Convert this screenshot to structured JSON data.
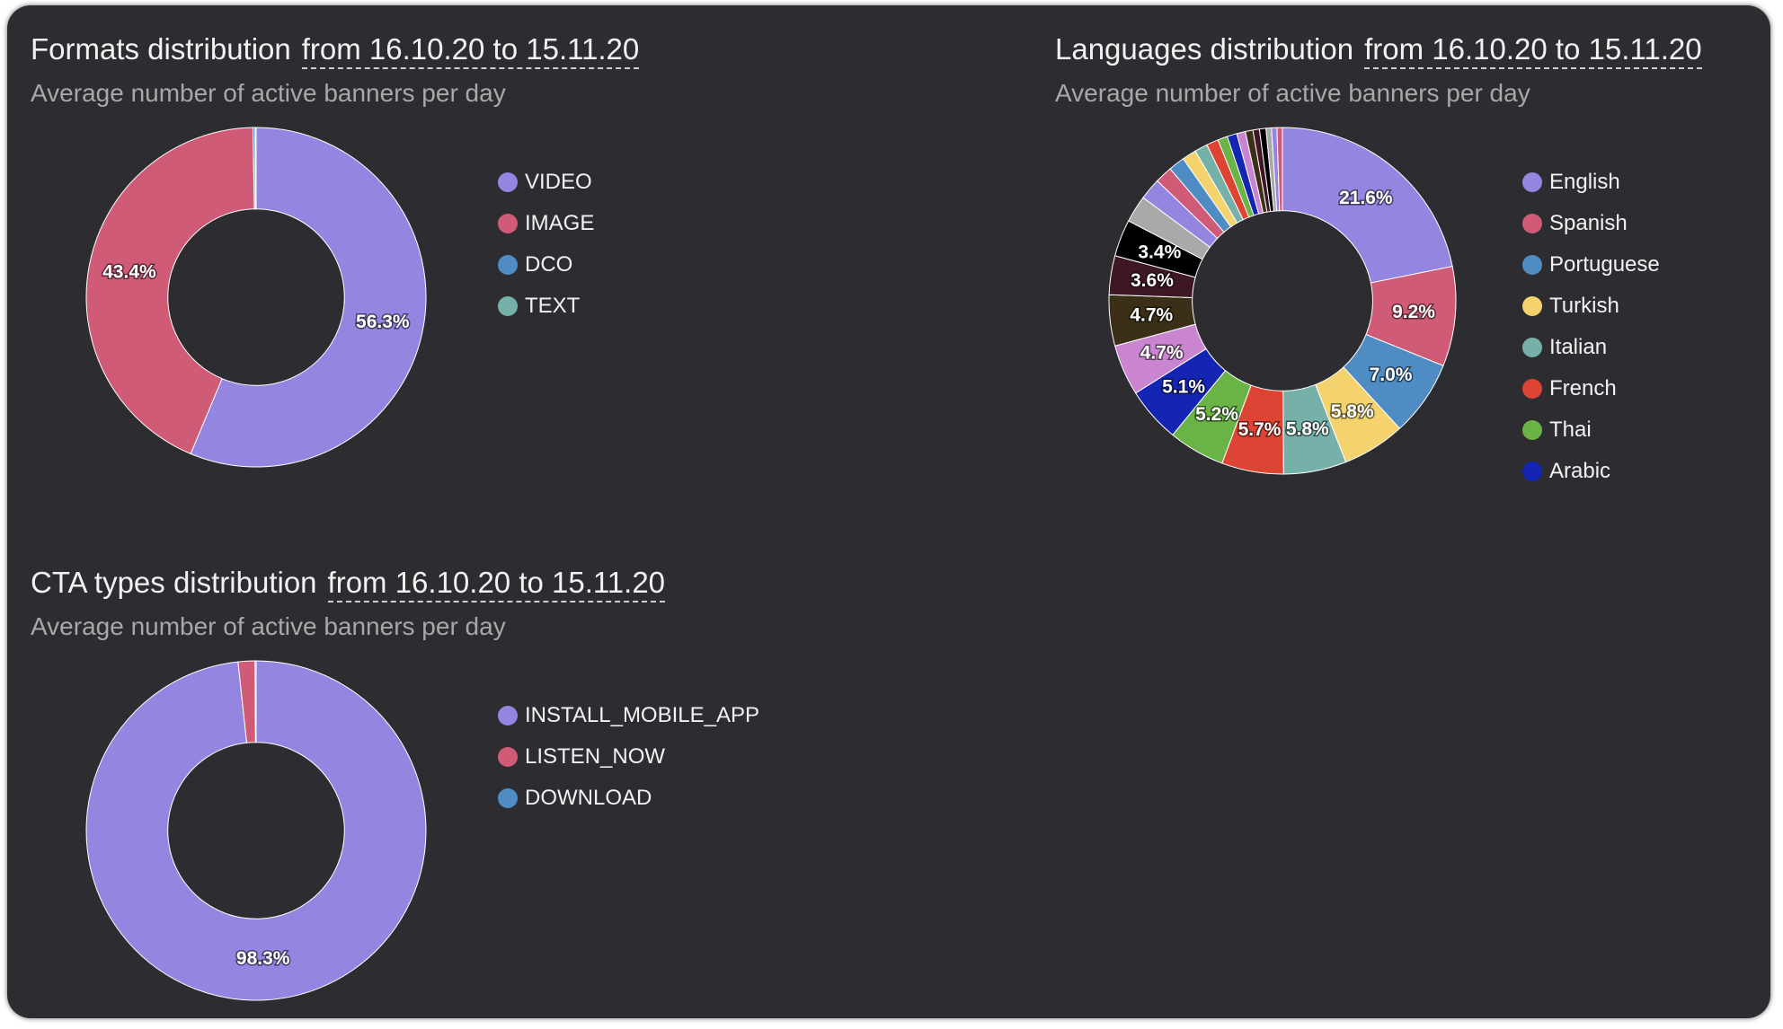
{
  "range_text": "from 16.10.20 to 15.11.20",
  "subtitle_text": "Average number of active banners per day",
  "colors": {
    "panel_bg": "#2d2c31",
    "palette": [
      "#9485e0",
      "#d05b77",
      "#4f8cc4",
      "#f4d36e",
      "#76b1a9",
      "#dd4433",
      "#6ab347",
      "#1424b3",
      "#c985cf",
      "#3b2f17",
      "#3d1824",
      "#000000",
      "#a9a9a9"
    ]
  },
  "chart_data": [
    {
      "type": "pie",
      "title": "Formats distribution",
      "subtitle": "Average number of active banners per day",
      "date_range": "from 16.10.20 to 15.11.20",
      "legend": [
        "VIDEO",
        "IMAGE",
        "DCO",
        "TEXT"
      ],
      "slices": [
        {
          "label": "VIDEO",
          "value": 56.3,
          "color": "#9485e0",
          "show_label": true
        },
        {
          "label": "IMAGE",
          "value": 43.4,
          "color": "#d05b77",
          "show_label": true
        },
        {
          "label": "DCO",
          "value": 0.2,
          "color": "#4f8cc4",
          "show_label": false
        },
        {
          "label": "TEXT",
          "value": 0.1,
          "color": "#76b1a9",
          "show_label": false
        }
      ]
    },
    {
      "type": "pie",
      "title": "Languages distribution",
      "subtitle": "Average number of active banners per day",
      "date_range": "from 16.10.20 to 15.11.20",
      "legend": [
        "English",
        "Spanish",
        "Portuguese",
        "Turkish",
        "Italian",
        "French",
        "Thai",
        "Arabic"
      ],
      "slices": [
        {
          "label": "English",
          "value": 21.6,
          "color": "#9485e0",
          "show_label": true
        },
        {
          "label": "Spanish",
          "value": 9.2,
          "color": "#d05b77",
          "show_label": true
        },
        {
          "label": "Portuguese",
          "value": 7.0,
          "color": "#4f8cc4",
          "show_label": true
        },
        {
          "label": "Turkish",
          "value": 5.8,
          "color": "#f4d36e",
          "show_label": true
        },
        {
          "label": "Italian",
          "value": 5.8,
          "color": "#76b1a9",
          "show_label": true
        },
        {
          "label": "French",
          "value": 5.7,
          "color": "#dd4433",
          "show_label": true
        },
        {
          "label": "Thai",
          "value": 5.2,
          "color": "#6ab347",
          "show_label": true
        },
        {
          "label": "Arabic",
          "value": 5.1,
          "color": "#1424b3",
          "show_label": true
        },
        {
          "label": "",
          "value": 4.7,
          "color": "#c985cf",
          "show_label": true
        },
        {
          "label": "",
          "value": 4.7,
          "color": "#3b2f17",
          "show_label": true
        },
        {
          "label": "",
          "value": 3.6,
          "color": "#3d1824",
          "show_label": true
        },
        {
          "label": "",
          "value": 3.4,
          "color": "#000000",
          "show_label": true
        },
        {
          "label": "",
          "value": 2.5,
          "color": "#a9a9a9",
          "show_label": false
        },
        {
          "label": "",
          "value": 2.0,
          "color": "#9485e0",
          "show_label": false
        },
        {
          "label": "",
          "value": 1.6,
          "color": "#d05b77",
          "show_label": false
        },
        {
          "label": "",
          "value": 1.5,
          "color": "#4f8cc4",
          "show_label": false
        },
        {
          "label": "",
          "value": 1.3,
          "color": "#f4d36e",
          "show_label": false
        },
        {
          "label": "",
          "value": 1.2,
          "color": "#76b1a9",
          "show_label": false
        },
        {
          "label": "",
          "value": 1.1,
          "color": "#dd4433",
          "show_label": false
        },
        {
          "label": "",
          "value": 0.9,
          "color": "#6ab347",
          "show_label": false
        },
        {
          "label": "",
          "value": 0.9,
          "color": "#1424b3",
          "show_label": false
        },
        {
          "label": "",
          "value": 0.8,
          "color": "#c985cf",
          "show_label": false
        },
        {
          "label": "",
          "value": 0.7,
          "color": "#3b2f17",
          "show_label": false
        },
        {
          "label": "",
          "value": 0.6,
          "color": "#3d1824",
          "show_label": false
        },
        {
          "label": "",
          "value": 0.6,
          "color": "#000000",
          "show_label": false
        },
        {
          "label": "",
          "value": 0.5,
          "color": "#a9a9a9",
          "show_label": false
        },
        {
          "label": "",
          "value": 0.5,
          "color": "#9485e0",
          "show_label": false
        },
        {
          "label": "",
          "value": 0.5,
          "color": "#d05b77",
          "show_label": false
        }
      ]
    },
    {
      "type": "pie",
      "title": "CTA types distribution",
      "subtitle": "Average number of active banners per day",
      "date_range": "from 16.10.20 to 15.11.20",
      "legend": [
        "INSTALL_MOBILE_APP",
        "LISTEN_NOW",
        "DOWNLOAD"
      ],
      "slices": [
        {
          "label": "INSTALL_MOBILE_APP",
          "value": 98.3,
          "color": "#9485e0",
          "show_label": true
        },
        {
          "label": "LISTEN_NOW",
          "value": 1.6,
          "color": "#d05b77",
          "show_label": false
        },
        {
          "label": "DOWNLOAD",
          "value": 0.1,
          "color": "#4f8cc4",
          "show_label": false
        }
      ]
    }
  ]
}
